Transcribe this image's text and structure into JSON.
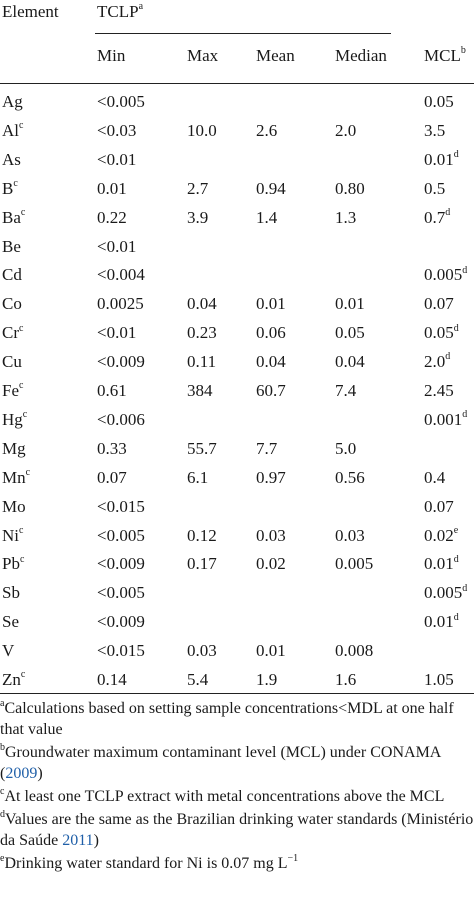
{
  "header": {
    "element": "Element",
    "tclp": "TCLP",
    "tclp_sup": "a",
    "columns": {
      "min": "Min",
      "max": "Max",
      "mean": "Mean",
      "median": "Median",
      "mcl": "MCL",
      "mcl_sup": "b"
    }
  },
  "rows": [
    {
      "element": "Ag",
      "element_sup": "",
      "min": "<0.005",
      "max": "",
      "mean": "",
      "median": "",
      "mcl": "0.05",
      "mcl_sup": ""
    },
    {
      "element": "Al",
      "element_sup": "c",
      "min": "<0.03",
      "max": "10.0",
      "mean": "2.6",
      "median": "2.0",
      "mcl": "3.5",
      "mcl_sup": ""
    },
    {
      "element": "As",
      "element_sup": "",
      "min": "<0.01",
      "max": "",
      "mean": "",
      "median": "",
      "mcl": "0.01",
      "mcl_sup": "d"
    },
    {
      "element": "B",
      "element_sup": "c",
      "min": "0.01",
      "max": "2.7",
      "mean": "0.94",
      "median": "0.80",
      "mcl": "0.5",
      "mcl_sup": ""
    },
    {
      "element": "Ba",
      "element_sup": "c",
      "min": "0.22",
      "max": "3.9",
      "mean": "1.4",
      "median": "1.3",
      "mcl": "0.7",
      "mcl_sup": "d"
    },
    {
      "element": "Be",
      "element_sup": "",
      "min": "<0.01",
      "max": "",
      "mean": "",
      "median": "",
      "mcl": "",
      "mcl_sup": ""
    },
    {
      "element": "Cd",
      "element_sup": "",
      "min": "<0.004",
      "max": "",
      "mean": "",
      "median": "",
      "mcl": "0.005",
      "mcl_sup": "d"
    },
    {
      "element": "Co",
      "element_sup": "",
      "min": "0.0025",
      "max": "0.04",
      "mean": "0.01",
      "median": "0.01",
      "mcl": "0.07",
      "mcl_sup": ""
    },
    {
      "element": "Cr",
      "element_sup": "c",
      "min": "<0.01",
      "max": "0.23",
      "mean": "0.06",
      "median": "0.05",
      "mcl": "0.05",
      "mcl_sup": "d"
    },
    {
      "element": "Cu",
      "element_sup": "",
      "min": "<0.009",
      "max": "0.11",
      "mean": "0.04",
      "median": "0.04",
      "mcl": "2.0",
      "mcl_sup": "d"
    },
    {
      "element": "Fe",
      "element_sup": "c",
      "min": "0.61",
      "max": "384",
      "mean": "60.7",
      "median": "7.4",
      "mcl": "2.45",
      "mcl_sup": ""
    },
    {
      "element": "Hg",
      "element_sup": "c",
      "min": "<0.006",
      "max": "",
      "mean": "",
      "median": "",
      "mcl": "0.001",
      "mcl_sup": "d"
    },
    {
      "element": "Mg",
      "element_sup": "",
      "min": "0.33",
      "max": "55.7",
      "mean": "7.7",
      "median": "5.0",
      "mcl": "",
      "mcl_sup": ""
    },
    {
      "element": "Mn",
      "element_sup": "c",
      "min": "0.07",
      "max": "6.1",
      "mean": "0.97",
      "median": "0.56",
      "mcl": "0.4",
      "mcl_sup": ""
    },
    {
      "element": "Mo",
      "element_sup": "",
      "min": "<0.015",
      "max": "",
      "mean": "",
      "median": "",
      "mcl": "0.07",
      "mcl_sup": ""
    },
    {
      "element": "Ni",
      "element_sup": "c",
      "min": "<0.005",
      "max": "0.12",
      "mean": "0.03",
      "median": "0.03",
      "mcl": "0.02",
      "mcl_sup": "e"
    },
    {
      "element": "Pb",
      "element_sup": "c",
      "min": "<0.009",
      "max": "0.17",
      "mean": "0.02",
      "median": "0.005",
      "mcl": "0.01",
      "mcl_sup": "d"
    },
    {
      "element": "Sb",
      "element_sup": "",
      "min": "<0.005",
      "max": "",
      "mean": "",
      "median": "",
      "mcl": "0.005",
      "mcl_sup": "d"
    },
    {
      "element": "Se",
      "element_sup": "",
      "min": "<0.009",
      "max": "",
      "mean": "",
      "median": "",
      "mcl": "0.01",
      "mcl_sup": "d"
    },
    {
      "element": "V",
      "element_sup": "",
      "min": "<0.015",
      "max": "0.03",
      "mean": "0.01",
      "median": "0.008",
      "mcl": "",
      "mcl_sup": ""
    },
    {
      "element": "Zn",
      "element_sup": "c",
      "min": "0.14",
      "max": "5.4",
      "mean": "1.9",
      "median": "1.6",
      "mcl": "1.05",
      "mcl_sup": ""
    }
  ],
  "footnotes": [
    {
      "mark": "a",
      "text": "Calculations based on setting sample concentrations<MDL at one half that value",
      "cite": "",
      "tail": ""
    },
    {
      "mark": "b",
      "text": "Groundwater maximum contaminant level (MCL) under CONAMA (",
      "cite": "2009",
      "tail": ")"
    },
    {
      "mark": "c",
      "text": "At least one TCLP extract with metal concentrations above the MCL",
      "cite": "",
      "tail": ""
    },
    {
      "mark": "d",
      "text": "Values are the same as the Brazilian drinking water standards (Ministério da Saúde ",
      "cite": "2011",
      "tail": ")"
    },
    {
      "mark": "e",
      "text": "Drinking water standard for Ni is 0.07 mg L",
      "cite": "",
      "tail": "",
      "unit_sup": "−1"
    }
  ],
  "colors": {
    "text": "#1a1a1a",
    "citation": "#1f5fa8",
    "rule": "#222222"
  }
}
